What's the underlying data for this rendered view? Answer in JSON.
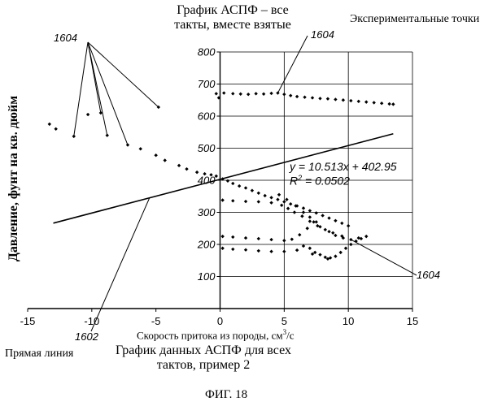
{
  "chart_data": {
    "type": "scatter",
    "title": "График АСПФ – все такты, вместе взятые",
    "caption": "График данных АСПФ для всех тактов, пример 2",
    "figure_label": "ФИГ. 18",
    "xlabel_prefix": "Скорость притока из породы, см",
    "xlabel_sup": "3",
    "xlabel_suffix": "/с",
    "ylabel": "Давление, фунт на кв. дюйм",
    "xlim": [
      -15,
      15
    ],
    "ylim": [
      0,
      800
    ],
    "x_ticks": [
      "-15",
      "-10",
      "-5",
      "0",
      "5",
      "10",
      "15"
    ],
    "y_ticks": [
      "100",
      "200",
      "300",
      "400",
      "500",
      "600",
      "700",
      "800"
    ],
    "grid": "right-half (x ≥ 0)",
    "annotations": {
      "experimental_points": "Экспериментальные точки",
      "straight_line": "Прямая линия",
      "ref_points": "1604",
      "ref_line": "1602",
      "equation": "y = 10.513x + 402.95",
      "r2_prefix": "R",
      "r2_sup": "2",
      "r2_suffix": " = 0.0502"
    },
    "trendline": {
      "slope": 10.513,
      "intercept": 402.95,
      "x_range": [
        -13.0,
        13.5
      ]
    },
    "series": [
      {
        "marker": "diamond",
        "color": "#000000",
        "points": [
          [
            -13.3,
            575
          ],
          [
            -12.8,
            560
          ],
          [
            -11.4,
            537
          ],
          [
            -10.3,
            605
          ],
          [
            -9.3,
            610
          ],
          [
            -8.8,
            540
          ],
          [
            -7.2,
            510
          ],
          [
            -6.2,
            498
          ],
          [
            -5.0,
            478
          ],
          [
            -4.8,
            628
          ],
          [
            -4.3,
            462
          ],
          [
            -3.2,
            446
          ],
          [
            -2.6,
            435
          ],
          [
            -1.8,
            425
          ],
          [
            -1.2,
            420
          ],
          [
            -0.7,
            417
          ],
          [
            -0.3,
            413
          ],
          [
            -0.3,
            670
          ],
          [
            -0.1,
            657
          ],
          [
            0.2,
            404
          ],
          [
            0.6,
            398
          ],
          [
            1.0,
            390
          ],
          [
            1.5,
            382
          ],
          [
            2.0,
            376
          ],
          [
            2.5,
            368
          ],
          [
            3.0,
            360
          ],
          [
            3.5,
            352
          ],
          [
            4.0,
            346
          ],
          [
            4.5,
            340
          ],
          [
            5.0,
            333
          ],
          [
            5.5,
            326
          ],
          [
            6.0,
            320
          ],
          [
            6.5,
            313
          ],
          [
            7.0,
            305
          ],
          [
            7.5,
            298
          ],
          [
            8.0,
            290
          ],
          [
            8.5,
            282
          ],
          [
            9.0,
            274
          ],
          [
            9.5,
            266
          ],
          [
            10.0,
            258
          ],
          [
            0.2,
            338
          ],
          [
            1.0,
            336
          ],
          [
            2.0,
            334
          ],
          [
            3.0,
            333
          ],
          [
            4.0,
            330
          ],
          [
            4.8,
            322
          ],
          [
            5.3,
            312
          ],
          [
            5.8,
            300
          ],
          [
            6.4,
            288
          ],
          [
            7.0,
            272
          ],
          [
            7.6,
            258
          ],
          [
            8.2,
            246
          ],
          [
            8.8,
            236
          ],
          [
            9.5,
            226
          ],
          [
            4.6,
            355
          ],
          [
            5.2,
            340
          ],
          [
            5.9,
            320
          ],
          [
            6.5,
            300
          ],
          [
            7.0,
            285
          ],
          [
            7.5,
            270
          ],
          [
            0.2,
            225
          ],
          [
            1.0,
            223
          ],
          [
            2.0,
            220
          ],
          [
            3.0,
            218
          ],
          [
            4.0,
            215
          ],
          [
            5.0,
            212
          ],
          [
            5.6,
            216
          ],
          [
            6.2,
            230
          ],
          [
            6.8,
            250
          ],
          [
            7.3,
            270
          ],
          [
            7.8,
            255
          ],
          [
            8.5,
            240
          ],
          [
            9.0,
            228
          ],
          [
            9.6,
            220
          ],
          [
            10.2,
            215
          ],
          [
            10.8,
            220
          ],
          [
            11.4,
            225
          ],
          [
            0.2,
            188
          ],
          [
            1.0,
            185
          ],
          [
            2.0,
            183
          ],
          [
            3.0,
            180
          ],
          [
            4.0,
            178
          ],
          [
            5.0,
            178
          ],
          [
            6.0,
            182
          ],
          [
            7.0,
            188
          ],
          [
            7.4,
            175
          ],
          [
            7.8,
            168
          ],
          [
            8.2,
            160
          ],
          [
            8.6,
            158
          ],
          [
            9.0,
            163
          ],
          [
            9.4,
            175
          ],
          [
            9.8,
            188
          ],
          [
            10.2,
            200
          ],
          [
            10.6,
            210
          ],
          [
            11.0,
            218
          ],
          [
            6.5,
            195
          ],
          [
            7.2,
            170
          ],
          [
            8.4,
            155
          ],
          [
            0.3,
            672
          ],
          [
            1.0,
            670
          ],
          [
            1.6,
            669
          ],
          [
            2.2,
            668
          ],
          [
            2.8,
            670
          ],
          [
            3.4,
            669
          ],
          [
            4.0,
            671
          ],
          [
            4.5,
            672
          ],
          [
            5.0,
            668
          ],
          [
            5.5,
            664
          ],
          [
            6.0,
            661
          ],
          [
            6.6,
            659
          ],
          [
            7.2,
            657
          ],
          [
            7.8,
            655
          ],
          [
            8.4,
            654
          ],
          [
            9.0,
            652
          ],
          [
            9.6,
            650
          ],
          [
            10.2,
            648
          ],
          [
            10.8,
            646
          ],
          [
            11.4,
            644
          ],
          [
            12.0,
            642
          ],
          [
            12.6,
            640
          ],
          [
            13.2,
            638
          ],
          [
            13.5,
            637
          ]
        ]
      }
    ]
  }
}
